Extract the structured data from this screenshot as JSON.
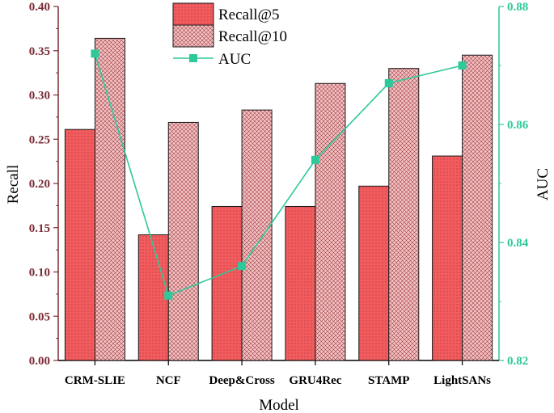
{
  "chart_data": {
    "type": "bar+line",
    "title": "",
    "xlabel": "Model",
    "ylabel": "Recall",
    "y2label": "AUC",
    "categories": [
      "CRM-SLIE",
      "NCF",
      "Deep&Cross",
      "GRU4Rec",
      "STAMP",
      "LightSANs"
    ],
    "series": [
      {
        "name": "Recall@5",
        "kind": "bar",
        "axis": "left",
        "values": [
          0.261,
          0.142,
          0.174,
          0.174,
          0.197,
          0.231
        ]
      },
      {
        "name": "Recall@10",
        "kind": "bar",
        "axis": "left",
        "values": [
          0.364,
          0.269,
          0.283,
          0.313,
          0.33,
          0.345
        ]
      },
      {
        "name": "AUC",
        "kind": "line",
        "axis": "right",
        "values": [
          0.872,
          0.831,
          0.836,
          0.854,
          0.867,
          0.87
        ]
      }
    ],
    "ylim": [
      0.0,
      0.4
    ],
    "yticks": [
      "0.00",
      "0.05",
      "0.10",
      "0.15",
      "0.20",
      "0.25",
      "0.30",
      "0.35",
      "0.40"
    ],
    "y2lim": [
      0.82,
      0.88
    ],
    "y2ticks": [
      "0.82",
      "0.84",
      "0.86",
      "0.88"
    ],
    "legend_position": "top-center",
    "colors": {
      "left_axis": "#7b2b33",
      "right_axis": "#2ec99a",
      "bar5_fill": "#f25c5e",
      "bar10_fill": "#f5c6c7",
      "bar_stroke": "#1a1a1a",
      "line": "#2ec99a",
      "marker": "#2ec99a"
    }
  }
}
